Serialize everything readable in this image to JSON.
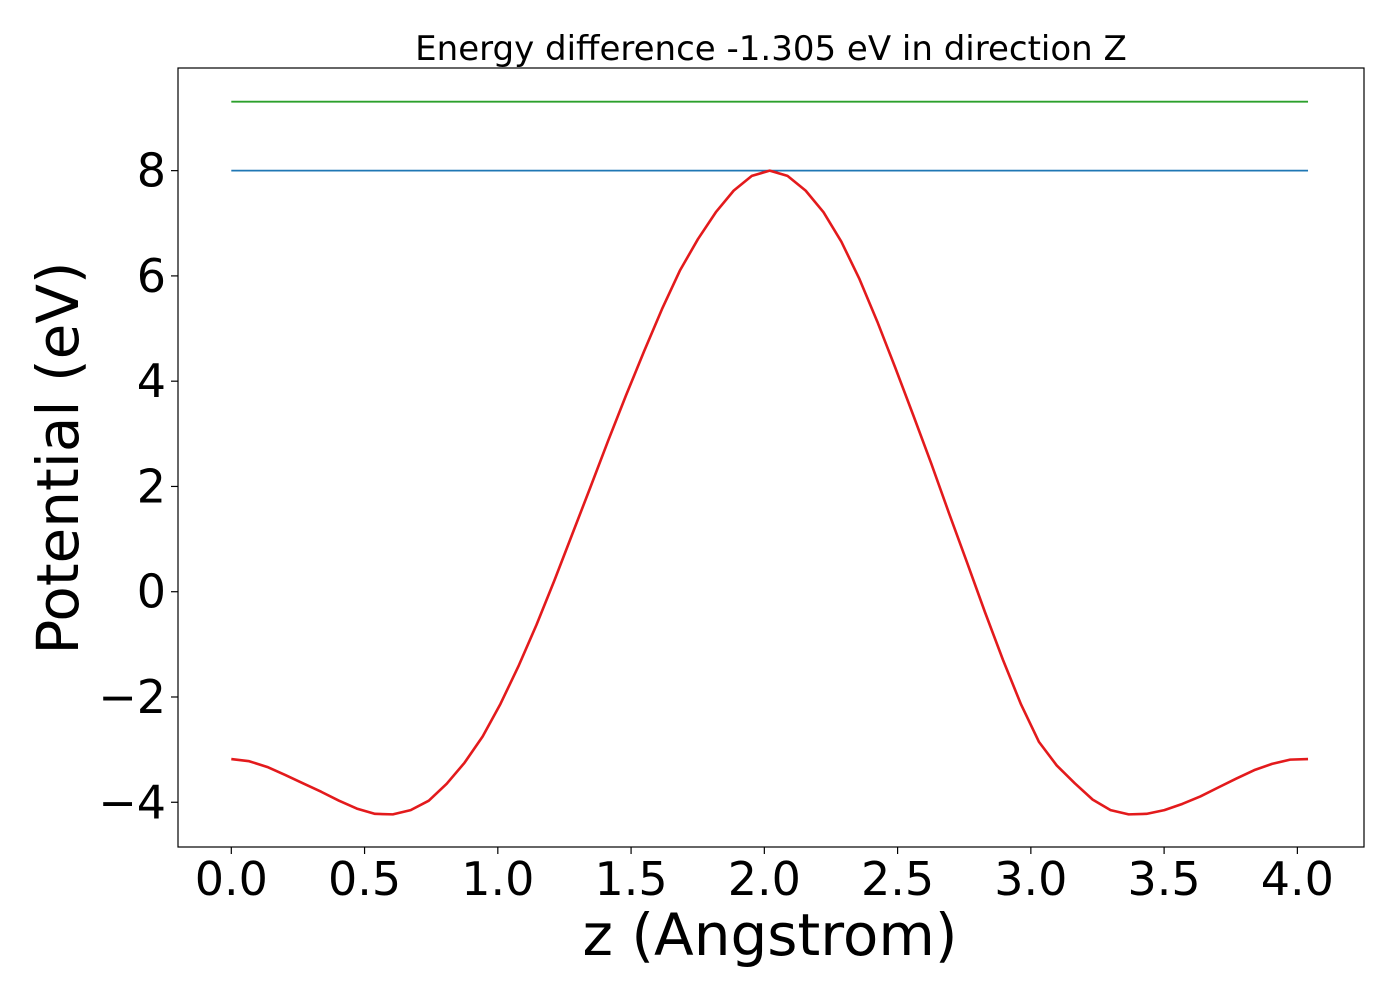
{
  "chart_data": {
    "type": "line",
    "title": "Energy difference -1.305 eV in direction Z",
    "xlabel": "z (Angstrom)",
    "ylabel": "Potential (eV)",
    "xlim": [
      -0.2,
      4.25
    ],
    "ylim": [
      -4.85,
      9.95
    ],
    "grid": false,
    "x_ticks": [
      0.0,
      0.5,
      1.0,
      1.5,
      2.0,
      2.5,
      3.0,
      3.5,
      4.0
    ],
    "x_tick_labels": [
      "0.0",
      "0.5",
      "1.0",
      "1.5",
      "2.0",
      "2.5",
      "3.0",
      "3.5",
      "4.0"
    ],
    "y_ticks": [
      -4,
      -2,
      0,
      2,
      4,
      6,
      8
    ],
    "y_tick_labels": [
      "−4",
      "−2",
      "0",
      "2",
      "4",
      "6",
      "8"
    ],
    "series": [
      {
        "color": "#2ca02c",
        "x": [
          0.0,
          4.04
        ],
        "y": [
          9.31,
          9.31
        ]
      },
      {
        "color": "#1f77b4",
        "x": [
          0.0,
          4.04
        ],
        "y": [
          8.0,
          8.0
        ]
      },
      {
        "color": "#e31a1c",
        "x": [
          0.0,
          0.067,
          0.135,
          0.202,
          0.269,
          0.337,
          0.404,
          0.471,
          0.539,
          0.606,
          0.673,
          0.741,
          0.808,
          0.875,
          0.943,
          1.01,
          1.077,
          1.145,
          1.212,
          1.279,
          1.347,
          1.414,
          1.481,
          1.549,
          1.616,
          1.683,
          1.751,
          1.818,
          1.885,
          1.953,
          2.02,
          2.087,
          2.155,
          2.222,
          2.289,
          2.357,
          2.424,
          2.491,
          2.559,
          2.626,
          2.693,
          2.761,
          2.828,
          2.895,
          2.963,
          3.03,
          3.097,
          3.165,
          3.232,
          3.299,
          3.367,
          3.434,
          3.501,
          3.569,
          3.636,
          3.703,
          3.771,
          3.838,
          3.905,
          3.973,
          4.04
        ],
        "y": [
          -3.18,
          -3.22,
          -3.33,
          -3.48,
          -3.64,
          -3.8,
          -3.97,
          -4.12,
          -4.22,
          -4.23,
          -4.15,
          -3.97,
          -3.65,
          -3.25,
          -2.75,
          -2.13,
          -1.42,
          -0.63,
          0.21,
          1.09,
          1.98,
          2.87,
          3.73,
          4.57,
          5.37,
          6.1,
          6.7,
          7.21,
          7.62,
          7.9,
          8.0,
          7.9,
          7.62,
          7.21,
          6.65,
          5.94,
          5.13,
          4.26,
          3.35,
          2.44,
          1.49,
          0.55,
          -0.39,
          -1.29,
          -2.14,
          -2.85,
          -3.3,
          -3.64,
          -3.95,
          -4.15,
          -4.23,
          -4.22,
          -4.15,
          -4.03,
          -3.89,
          -3.72,
          -3.55,
          -3.39,
          -3.27,
          -3.19,
          -3.18
        ]
      }
    ]
  }
}
